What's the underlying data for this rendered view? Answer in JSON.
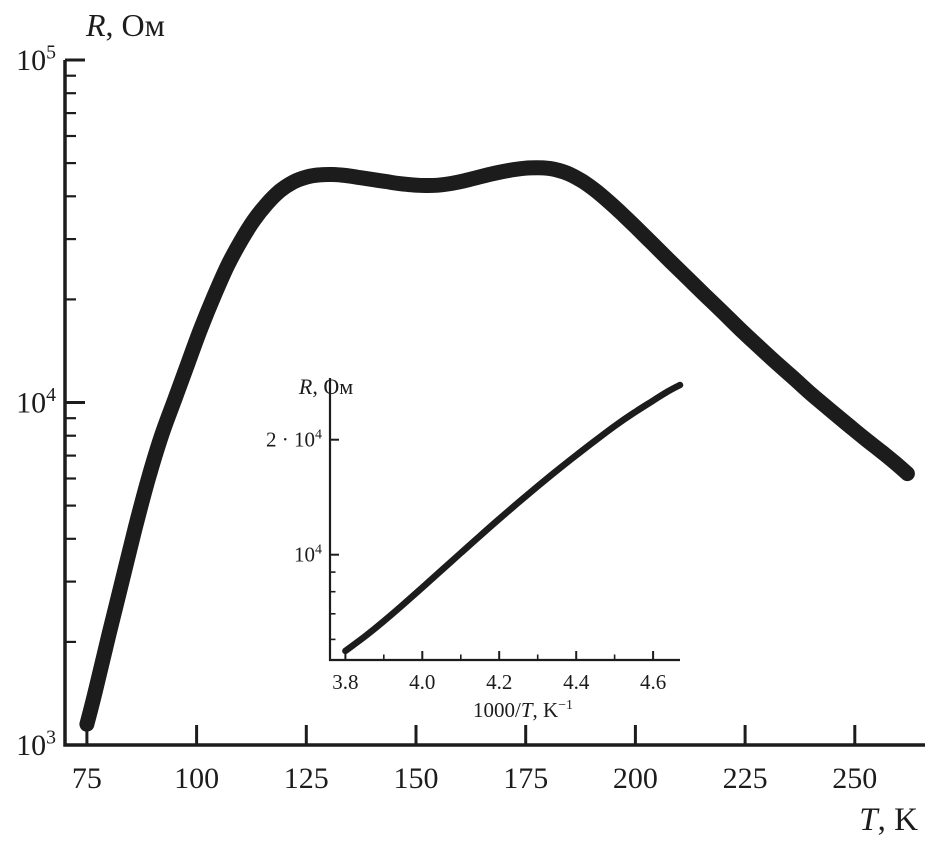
{
  "figure": {
    "background": "#ffffff",
    "ink": "#1c1c1c",
    "description": "Resistance R (Ohm) vs temperature T (K), log y-axis, with Arrhenius inset R vs 1000/T"
  },
  "chart_data": [
    {
      "id": "main",
      "type": "line",
      "title": "R, Ом",
      "ylabel": "R, Ом",
      "xlabel": "T, K",
      "xscale": "linear",
      "yscale": "log",
      "grid": false,
      "xlim": [
        70,
        266
      ],
      "ylim": [
        1000,
        100000
      ],
      "title_parts": [
        {
          "t": "R",
          "i": true
        },
        {
          "t": ", Ом"
        }
      ],
      "xlabel_parts": [
        {
          "t": "T",
          "i": true
        },
        {
          "t": ", K"
        }
      ],
      "x_ticks": [
        {
          "value": 75,
          "label": "75"
        },
        {
          "value": 100,
          "label": "100"
        },
        {
          "value": 125,
          "label": "125"
        },
        {
          "value": 150,
          "label": "150"
        },
        {
          "value": 175,
          "label": "175"
        },
        {
          "value": 200,
          "label": "200"
        },
        {
          "value": 225,
          "label": "225"
        },
        {
          "value": 250,
          "label": "250"
        }
      ],
      "x_minor_ticks": [],
      "y_ticks": [
        {
          "value": 100000,
          "label": "10^5",
          "parts": [
            {
              "t": "10"
            },
            {
              "t": "5",
              "sup": true
            }
          ]
        },
        {
          "value": 10000,
          "label": "10^4",
          "parts": [
            {
              "t": "10"
            },
            {
              "t": "4",
              "sup": true
            }
          ]
        },
        {
          "value": 1000,
          "label": "10^3",
          "parts": [
            {
              "t": "10"
            },
            {
              "t": "3",
              "sup": true
            }
          ]
        }
      ],
      "series": [
        {
          "name": "R vs T",
          "x": [
            75,
            77,
            80,
            83,
            86,
            89,
            92,
            95,
            98,
            101,
            104,
            107,
            110,
            113,
            116,
            119,
            122,
            125,
            128,
            131,
            134,
            137,
            140,
            143,
            146,
            149,
            152,
            155,
            158,
            161,
            164,
            167,
            170,
            173,
            176,
            179,
            182,
            185,
            188,
            191,
            194,
            197,
            200,
            204,
            208,
            212,
            216,
            220,
            224,
            228,
            232,
            236,
            240,
            244,
            248,
            252,
            256,
            259,
            262
          ],
          "y": [
            1150,
            1450,
            2100,
            3000,
            4300,
            6000,
            8000,
            10200,
            13000,
            16500,
            20500,
            25000,
            29500,
            34000,
            38000,
            41500,
            44000,
            45500,
            46200,
            46300,
            46000,
            45400,
            44800,
            44200,
            43600,
            43200,
            43000,
            43100,
            43600,
            44400,
            45400,
            46400,
            47300,
            48000,
            48400,
            48400,
            47800,
            46400,
            44200,
            41500,
            38500,
            35500,
            32600,
            29000,
            25800,
            23000,
            20500,
            18300,
            16300,
            14600,
            13100,
            11800,
            10600,
            9600,
            8700,
            7900,
            7200,
            6700,
            6200
          ]
        }
      ]
    },
    {
      "id": "inset",
      "type": "line",
      "title": "R, Ом",
      "ylabel": "R, Ом",
      "xlabel": "1000/T, K⁻¹",
      "xscale": "linear",
      "yscale": "log",
      "grid": false,
      "xlim": [
        3.76,
        4.67
      ],
      "ylim": [
        5300,
        29000
      ],
      "title_parts": [
        {
          "t": "R",
          "i": true
        },
        {
          "t": ", Ом"
        }
      ],
      "xlabel_parts": [
        {
          "t": "1000/"
        },
        {
          "t": "T",
          "i": true
        },
        {
          "t": ", K"
        },
        {
          "t": "−1",
          "sup": true
        }
      ],
      "x_ticks": [
        {
          "value": 3.8,
          "label": "3.8"
        },
        {
          "value": 4.0,
          "label": "4.0"
        },
        {
          "value": 4.2,
          "label": "4.2"
        },
        {
          "value": 4.4,
          "label": "4.4"
        },
        {
          "value": 4.6,
          "label": "4.6"
        }
      ],
      "x_minor_ticks": [
        3.9,
        4.1,
        4.3,
        4.5
      ],
      "y_ticks": [
        {
          "value": 20000,
          "label": "2·10^4",
          "parts": [
            {
              "t": "2 · 10"
            },
            {
              "t": "4",
              "sup": true
            }
          ]
        },
        {
          "value": 10000,
          "label": "10^4",
          "parts": [
            {
              "t": "10"
            },
            {
              "t": "4",
              "sup": true
            }
          ]
        }
      ],
      "series": [
        {
          "name": "R vs 1000/T",
          "x": [
            3.8,
            3.85,
            3.9,
            3.95,
            4.0,
            4.05,
            4.1,
            4.15,
            4.2,
            4.25,
            4.3,
            4.35,
            4.4,
            4.45,
            4.5,
            4.55,
            4.6,
            4.64,
            4.67
          ],
          "y": [
            5600,
            6100,
            6700,
            7400,
            8200,
            9100,
            10100,
            11200,
            12400,
            13700,
            15100,
            16600,
            18200,
            19900,
            21700,
            23500,
            25300,
            26800,
            27800
          ]
        }
      ]
    }
  ]
}
